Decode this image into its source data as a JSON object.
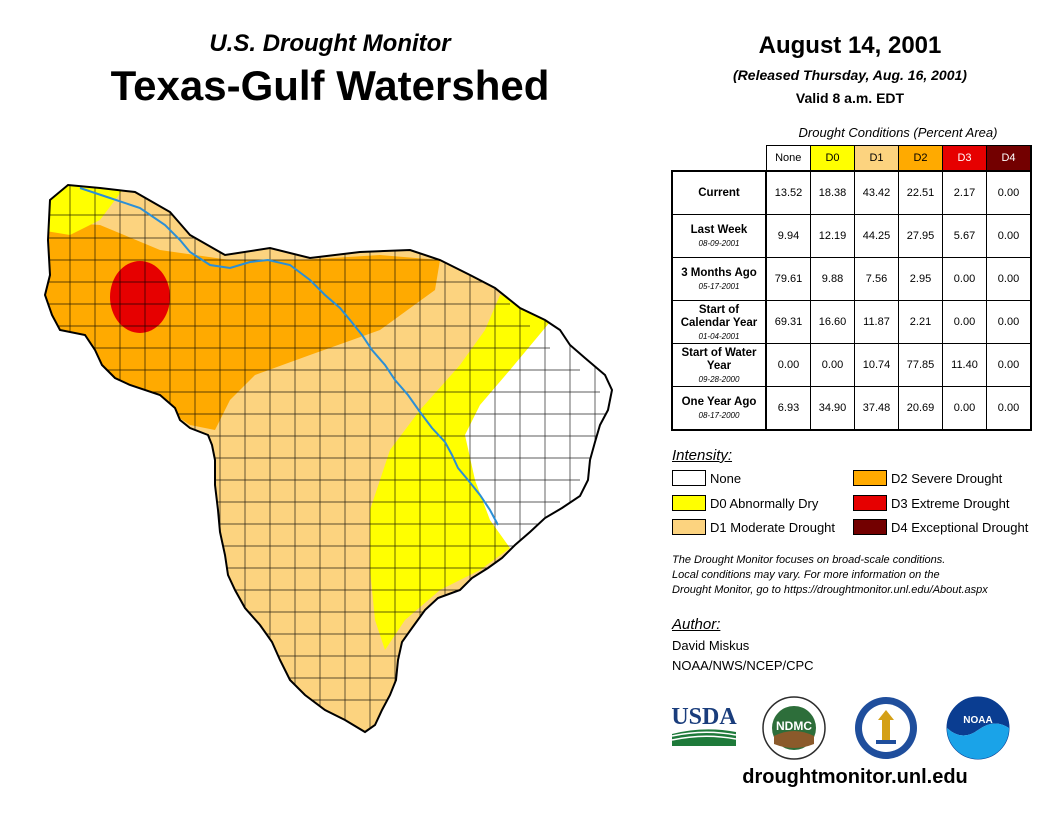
{
  "header": {
    "subtitle": "U.S. Drought Monitor",
    "title": "Texas-Gulf Watershed",
    "date": "August 14, 2001",
    "released": "(Released Thursday, Aug. 16, 2001)",
    "valid": "Valid 8 a.m. EDT"
  },
  "table": {
    "caption": "Drought Conditions (Percent Area)",
    "columns": [
      "None",
      "D0",
      "D1",
      "D2",
      "D3",
      "D4"
    ],
    "column_colors": [
      "#ffffff",
      "#ffff00",
      "#fcd37f",
      "#ffaa00",
      "#e60000",
      "#730000"
    ],
    "column_text_colors": [
      "#000000",
      "#000000",
      "#000000",
      "#000000",
      "#ffffff",
      "#ffffff"
    ],
    "rows": [
      {
        "label": "Current",
        "date": "",
        "values": [
          "13.52",
          "18.38",
          "43.42",
          "22.51",
          "2.17",
          "0.00"
        ]
      },
      {
        "label": "Last Week",
        "date": "08-09-2001",
        "values": [
          "9.94",
          "12.19",
          "44.25",
          "27.95",
          "5.67",
          "0.00"
        ]
      },
      {
        "label": "3 Months Ago",
        "date": "05-17-2001",
        "values": [
          "79.61",
          "9.88",
          "7.56",
          "2.95",
          "0.00",
          "0.00"
        ]
      },
      {
        "label": "Start of Calendar Year",
        "date": "01-04-2001",
        "values": [
          "69.31",
          "16.60",
          "11.87",
          "2.21",
          "0.00",
          "0.00"
        ]
      },
      {
        "label": "Start of Water Year",
        "date": "09-28-2000",
        "values": [
          "0.00",
          "0.00",
          "10.74",
          "77.85",
          "11.40",
          "0.00"
        ]
      },
      {
        "label": "One Year Ago",
        "date": "08-17-2000",
        "values": [
          "6.93",
          "34.90",
          "37.48",
          "20.69",
          "0.00",
          "0.00"
        ]
      }
    ]
  },
  "legend": {
    "title": "Intensity:",
    "items": [
      {
        "label": "None",
        "color": "#ffffff"
      },
      {
        "label": "D0 Abnormally Dry",
        "color": "#ffff00"
      },
      {
        "label": "D1 Moderate Drought",
        "color": "#fcd37f"
      },
      {
        "label": "D2 Severe Drought",
        "color": "#ffaa00"
      },
      {
        "label": "D3 Extreme Drought",
        "color": "#e60000"
      },
      {
        "label": "D4 Exceptional Drought",
        "color": "#730000"
      }
    ]
  },
  "note": {
    "line1": "The Drought Monitor focuses on broad-scale conditions.",
    "line2": "Local conditions may vary. For more information on the",
    "line3": "Drought Monitor, go to https://droughtmonitor.unl.edu/About.aspx"
  },
  "author": {
    "label": "Author:",
    "name": "David Miskus",
    "org": "NOAA/NWS/NCEP/CPC"
  },
  "logos": {
    "usda": "USDA",
    "ndmc": "NDMC",
    "noaa": "NOAA"
  },
  "footer": {
    "url": "droughtmonitor.unl.edu"
  }
}
